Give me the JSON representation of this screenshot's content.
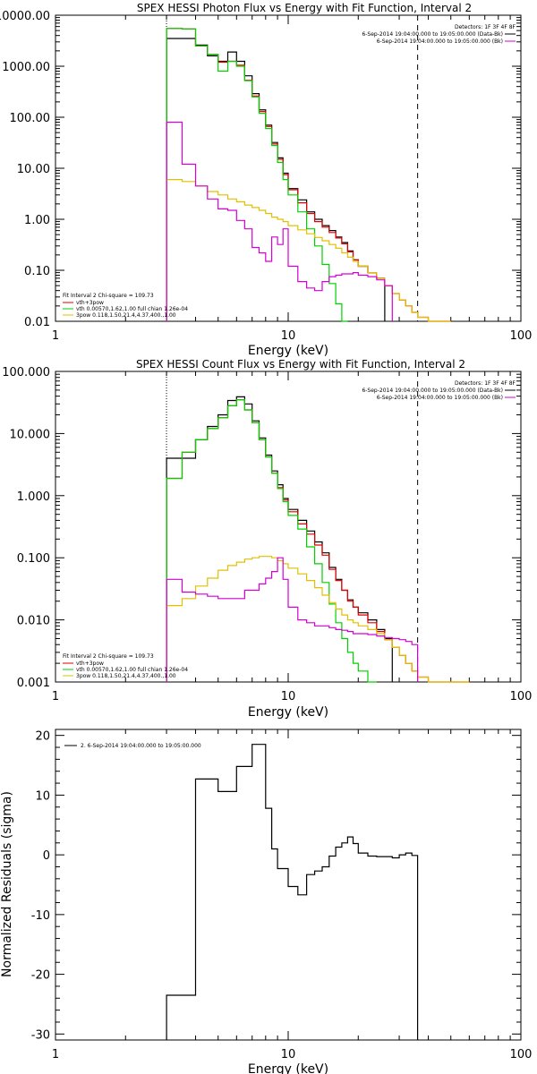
{
  "chart_data": [
    {
      "type": "line",
      "title": "SPEX HESSI Photon Flux vs Energy with Fit Function, Interval 2",
      "xlabel": "Energy (keV)",
      "ylabel": "",
      "xscale": "log",
      "yscale": "log",
      "xlim": [
        1,
        100
      ],
      "ylim": [
        0.01,
        10000
      ],
      "xticks": [
        1,
        10,
        100
      ],
      "xtick_labels": [
        "1",
        "10",
        "100"
      ],
      "yticks": [
        10000,
        1000,
        100,
        10,
        1,
        0.1,
        0.01
      ],
      "ytick_labels": [
        "10000.00",
        "1000.00",
        "100.00",
        "10.00",
        "1.00",
        "0.10",
        "0.01"
      ],
      "vlines": [
        {
          "x": 3,
          "style": "dotted"
        },
        {
          "x": 36,
          "style": "dashed"
        }
      ],
      "legend_right": {
        "position": "top-right",
        "lines": [
          {
            "text": "Detectors: 1F 3F 4F 8F",
            "color": "none"
          },
          {
            "text": "6-Sep-2014 19:04:00.000 to 19:05:00.000 (Data-Bk)",
            "color": "#000000"
          },
          {
            "text": "6-Sep-2014 19:04:00.000 to 19:05:00.000 (Bk)",
            "color": "#d400d4"
          }
        ]
      },
      "legend_left": {
        "position": "bottom-left",
        "header": "Fit Interval 2   Chi-square = 109.73",
        "lines": [
          {
            "text": "vth+3pow",
            "color": "#e00000"
          },
          {
            "text": "vth 0.00570,1.62,1.00   full chian 1.26e-04",
            "color": "#00d000"
          },
          {
            "text": "3pow 0.118,1.50,21.4,4.37,400.,1.00",
            "color": "#e0c000"
          }
        ]
      },
      "bin_edges": [
        3.0,
        3.5,
        4.0,
        4.5,
        5.0,
        5.5,
        6.0,
        6.5,
        7.0,
        7.5,
        8.0,
        8.5,
        9.0,
        9.5,
        10.0,
        11.0,
        12.0,
        13.0,
        14.0,
        15.0,
        16.0,
        17.0,
        18.0,
        19.0,
        20.0,
        22.0,
        24.0,
        26.0,
        28.0,
        30.0,
        32.0,
        34.0,
        36.0,
        40.0,
        45.0,
        50.0
      ],
      "series": [
        {
          "name": "6-Sep-2014 19:04:00.000 to 19:05:00.000 (Data-Bk)",
          "color": "#000000",
          "start": 0,
          "values": [
            3500,
            3500,
            2600,
            1600,
            1250,
            1900,
            1250,
            650,
            290,
            140,
            70,
            32,
            16,
            8,
            4,
            2.4,
            1.4,
            1.0,
            0.75,
            0.6,
            0.45,
            0.35,
            0.24,
            0.16,
            0.12,
            0.09,
            0.07
          ]
        },
        {
          "name": "vth+3pow",
          "color": "#e00000",
          "start": 0,
          "values": [
            5500,
            5400,
            2500,
            1700,
            1200,
            1250,
            1050,
            530,
            260,
            130,
            66,
            30,
            15,
            7.5,
            3.8,
            2.1,
            1.3,
            0.9,
            0.7,
            0.55,
            0.43,
            0.33,
            0.23,
            0.16,
            0.12,
            0.09,
            0.07,
            0.05,
            0.035,
            0.026,
            0.02,
            0.015,
            0.012,
            0.01,
            0.01
          ]
        },
        {
          "name": "vth 0.00570,1.62,1.00   full chian 1.26e-04",
          "color": "#00d000",
          "start": 0,
          "values": [
            5500,
            5400,
            2500,
            1700,
            800,
            1250,
            1000,
            520,
            250,
            120,
            60,
            28,
            13,
            6,
            3,
            1.4,
            0.65,
            0.3,
            0.13,
            0.055,
            0.022,
            0.01
          ]
        },
        {
          "name": "3pow 0.118,1.50,21.4,4.37,400.,1.00",
          "color": "#e0c000",
          "start": 0,
          "values": [
            6.0,
            5.5,
            4.5,
            3.5,
            3.0,
            2.5,
            2.2,
            1.9,
            1.7,
            1.5,
            1.3,
            1.1,
            1.0,
            0.9,
            0.75,
            0.62,
            0.52,
            0.44,
            0.38,
            0.32,
            0.27,
            0.22,
            0.18,
            0.15,
            0.12,
            0.09,
            0.07,
            0.05,
            0.035,
            0.026,
            0.02,
            0.015,
            0.012,
            0.01,
            0.01
          ]
        },
        {
          "name": "6-Sep-2014 19:04:00.000 to 19:05:00.000 (Bk)",
          "color": "#d400d4",
          "start": 0,
          "values": [
            80,
            12,
            4.5,
            2.5,
            1.6,
            1.5,
            0.95,
            0.65,
            0.28,
            0.22,
            0.15,
            0.45,
            0.32,
            0.65,
            0.12,
            0.06,
            0.045,
            0.04,
            0.06,
            0.075,
            0.08,
            0.085,
            0.085,
            0.09,
            0.08,
            0.075,
            0.065,
            0.05
          ]
        }
      ]
    },
    {
      "type": "line",
      "title": "SPEX HESSI Count Flux vs Energy with Fit Function, Interval 2",
      "xlabel": "Energy (keV)",
      "ylabel": "",
      "xscale": "log",
      "yscale": "log",
      "xlim": [
        1,
        100
      ],
      "ylim": [
        0.001,
        100
      ],
      "xticks": [
        1,
        10,
        100
      ],
      "xtick_labels": [
        "1",
        "10",
        "100"
      ],
      "yticks": [
        100,
        10,
        1,
        0.1,
        0.01,
        0.001
      ],
      "ytick_labels": [
        "100.000",
        "10.000",
        "1.000",
        "0.100",
        "0.010",
        "0.001"
      ],
      "vlines": [
        {
          "x": 3,
          "style": "dotted"
        },
        {
          "x": 36,
          "style": "dashed"
        }
      ],
      "legend_right": {
        "position": "top-right",
        "lines": [
          {
            "text": "Detectors: 1F 3F 4F 8F",
            "color": "none"
          },
          {
            "text": "6-Sep-2014 19:04:00.000 to 19:05:00.000 (Data-Bk)",
            "color": "#000000"
          },
          {
            "text": "6-Sep-2014 19:04:00.000 to 19:05:00.000 (Bk)",
            "color": "#d400d4"
          }
        ]
      },
      "legend_left": {
        "position": "bottom-left",
        "header": "Fit Interval 2   Chi-square = 109.73",
        "lines": [
          {
            "text": "vth+3pow",
            "color": "#e00000"
          },
          {
            "text": "vth 0.00570,1.62,1.00   full chian 1.26e-04",
            "color": "#00d000"
          },
          {
            "text": "3pow 0.118,1.50,21.4,4.37,400.,1.00",
            "color": "#e0c000"
          }
        ]
      },
      "bin_edges": [
        3.0,
        3.5,
        4.0,
        4.5,
        5.0,
        5.5,
        6.0,
        6.5,
        7.0,
        7.5,
        8.0,
        8.5,
        9.0,
        9.5,
        10.0,
        11.0,
        12.0,
        13.0,
        14.0,
        15.0,
        16.0,
        17.0,
        18.0,
        19.0,
        20.0,
        22.0,
        24.0,
        26.0,
        28.0,
        30.0,
        32.0,
        34.0,
        36.0,
        40.0,
        45.0,
        50.0,
        55.0,
        60.0
      ],
      "series": [
        {
          "name": "6-Sep-2014 19:04:00.000 to 19:05:00.000 (Data-Bk)",
          "color": "#000000",
          "start": 0,
          "values": [
            4.0,
            4.0,
            8.0,
            13.0,
            20.0,
            34.0,
            39.0,
            30.0,
            16.0,
            8.5,
            4.5,
            2.5,
            1.5,
            0.9,
            0.6,
            0.4,
            0.27,
            0.18,
            0.12,
            0.07,
            0.045,
            0.03,
            0.021,
            0.016,
            0.013,
            0.01,
            0.007,
            0.005
          ]
        },
        {
          "name": "vth+3pow",
          "color": "#e00000",
          "start": 0,
          "values": [
            1.9,
            5.0,
            8.0,
            12.0,
            18.0,
            28.0,
            35.0,
            24.0,
            15.0,
            8.0,
            4.2,
            2.3,
            1.35,
            0.85,
            0.55,
            0.35,
            0.24,
            0.16,
            0.11,
            0.065,
            0.043,
            0.03,
            0.02,
            0.016,
            0.012,
            0.009,
            0.0065,
            0.0048,
            0.0036,
            0.0027,
            0.002,
            0.0015,
            0.0012,
            0.001,
            0.001,
            0.001,
            0.001
          ]
        },
        {
          "name": "vth 0.00570,1.62,1.00   full chian 1.26e-04",
          "color": "#00d000",
          "start": 0,
          "values": [
            1.9,
            5.0,
            8.0,
            12.0,
            18.0,
            28.0,
            35.0,
            24.0,
            15.0,
            8.0,
            4.2,
            2.3,
            1.3,
            0.8,
            0.48,
            0.29,
            0.15,
            0.08,
            0.04,
            0.018,
            0.009,
            0.005,
            0.003,
            0.002,
            0.0015,
            0.001
          ]
        },
        {
          "name": "3pow 0.118,1.50,21.4,4.37,400.,1.00",
          "color": "#e0c000",
          "start": 0,
          "values": [
            0.017,
            0.022,
            0.035,
            0.047,
            0.063,
            0.075,
            0.085,
            0.095,
            0.1,
            0.105,
            0.105,
            0.1,
            0.09,
            0.08,
            0.068,
            0.055,
            0.043,
            0.033,
            0.025,
            0.019,
            0.015,
            0.012,
            0.01,
            0.009,
            0.008,
            0.007,
            0.006,
            0.0048,
            0.0036,
            0.0027,
            0.002,
            0.0015,
            0.0012,
            0.001,
            0.001,
            0.001,
            0.001
          ]
        },
        {
          "name": "6-Sep-2014 19:04:00.000 to 19:05:00.000 (Bk)",
          "color": "#d400d4",
          "start": 0,
          "values": [
            0.045,
            0.028,
            0.026,
            0.024,
            0.022,
            0.022,
            0.022,
            0.03,
            0.03,
            0.038,
            0.047,
            0.06,
            0.1,
            0.045,
            0.016,
            0.01,
            0.009,
            0.008,
            0.008,
            0.0075,
            0.007,
            0.0068,
            0.0065,
            0.006,
            0.006,
            0.0058,
            0.0055,
            0.0052,
            0.005,
            0.0048,
            0.0045,
            0.004
          ]
        }
      ]
    },
    {
      "type": "line",
      "title": "",
      "xlabel": "Energy (keV)",
      "ylabel": "Normalized Residuals (sigma)",
      "xscale": "log",
      "yscale": "linear",
      "xlim": [
        1,
        100
      ],
      "ylim": [
        -31,
        21
      ],
      "xticks": [
        1,
        10,
        100
      ],
      "xtick_labels": [
        "1",
        "10",
        "100"
      ],
      "yticks": [
        20,
        10,
        0,
        -10,
        -20,
        -30
      ],
      "ytick_labels": [
        "20",
        "10",
        "0",
        "-10",
        "-20",
        "-30"
      ],
      "legend": {
        "position": "top-left",
        "lines": [
          {
            "text": "2. 6-Sep-2014 19:04:00.000 to 19:05:00.000",
            "color": "#000000"
          }
        ]
      },
      "bin_edges": [
        3.0,
        4.0,
        4.5,
        5.0,
        5.5,
        6.0,
        6.5,
        7.0,
        7.5,
        8.0,
        8.5,
        9.0,
        9.5,
        10.0,
        11.0,
        12.0,
        13.0,
        14.0,
        15.0,
        16.0,
        17.0,
        18.0,
        19.0,
        20.0,
        22.0,
        24.0,
        26.0,
        28.0,
        30.0,
        32.0,
        34.0,
        36.0
      ],
      "series": [
        {
          "name": "2. 6-Sep-2014 19:04:00.000 to 19:05:00.000",
          "color": "#000000",
          "start": 0,
          "values": [
            -23.5,
            12.7,
            12.7,
            10.6,
            10.6,
            14.8,
            14.8,
            18.5,
            18.5,
            7.8,
            1.0,
            -2.3,
            -2.3,
            -5.3,
            -6.7,
            -3.3,
            -2.7,
            -2.0,
            -0.2,
            1.3,
            2.0,
            3.0,
            1.9,
            0.3,
            -0.2,
            -0.3,
            -0.3,
            -0.5,
            0.0,
            0.3,
            -0.1
          ]
        }
      ]
    }
  ]
}
